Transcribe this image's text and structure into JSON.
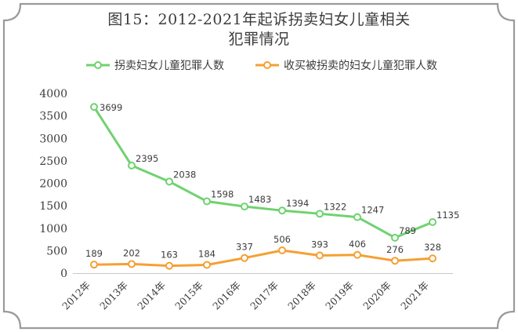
{
  "chart_data": {
    "type": "line",
    "title_line1": "图15：2012-2021年起诉拐卖妇女儿童相关",
    "title_line2": "犯罪情况",
    "categories": [
      "2012年",
      "2013年",
      "2014年",
      "2015年",
      "2016年",
      "2017年",
      "2018年",
      "2019年",
      "2020年",
      "2021年"
    ],
    "series": [
      {
        "name": "拐卖妇女儿童犯罪人数",
        "color": "#6fd26f",
        "values": [
          3699,
          2395,
          2038,
          1598,
          1483,
          1394,
          1322,
          1247,
          789,
          1135
        ],
        "labels": [
          "3699",
          "2395",
          "2038",
          "1598",
          "1483",
          "1394",
          "1322",
          "1247",
          "789",
          "1135"
        ]
      },
      {
        "name": "收买被拐卖的妇女儿童犯罪人数",
        "color": "#f5a033",
        "values": [
          189,
          202,
          163,
          184,
          337,
          506,
          393,
          406,
          276,
          328
        ],
        "labels": [
          "189",
          "202",
          "163",
          "184",
          "337",
          "506",
          "393",
          "406",
          "276",
          "328"
        ]
      }
    ],
    "y_ticks": [
      "0",
      "500",
      "1000",
      "1500",
      "2000",
      "2500",
      "3000",
      "3500",
      "4000"
    ],
    "ylim": [
      0,
      4000
    ],
    "grid": false,
    "legend": "top-center"
  }
}
